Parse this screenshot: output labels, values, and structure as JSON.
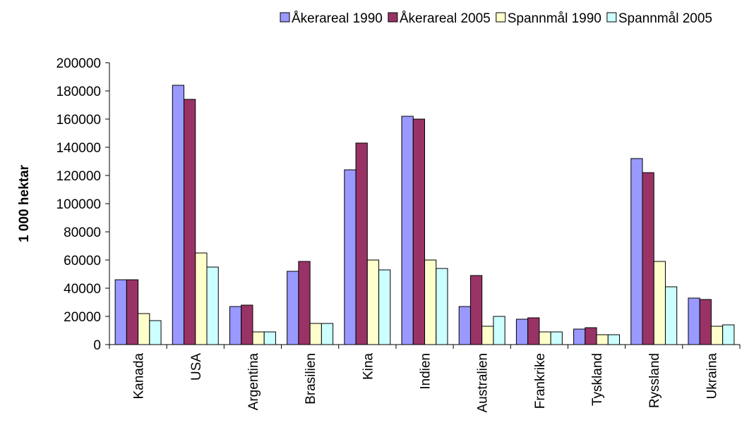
{
  "chart_data": {
    "type": "bar",
    "y_label": "1 000 hektar",
    "categories": [
      "Kanada",
      "USA",
      "Argentina",
      "Brasilien",
      "Kina",
      "Indien",
      "Australien",
      "Frankrike",
      "Tyskland",
      "Ryssland",
      "Ukraina"
    ],
    "series": [
      {
        "name": "Åkerareal 1990",
        "color": "#9999ff",
        "values": [
          46000,
          184000,
          27000,
          52000,
          124000,
          162000,
          27000,
          18000,
          11000,
          132000,
          33000
        ]
      },
      {
        "name": "Åkerareal 2005",
        "color": "#993366",
        "values": [
          46000,
          174000,
          28000,
          59000,
          143000,
          160000,
          49000,
          19000,
          12000,
          122000,
          32000
        ]
      },
      {
        "name": "Spannmål 1990",
        "color": "#ffffcc",
        "values": [
          22000,
          65000,
          9000,
          15000,
          60000,
          60000,
          13000,
          9000,
          7000,
          59000,
          13000
        ]
      },
      {
        "name": "Spannmål 2005",
        "color": "#ccffff",
        "values": [
          17000,
          55000,
          9000,
          15000,
          53000,
          54000,
          20000,
          9000,
          7000,
          41000,
          14000
        ]
      }
    ],
    "ylim": [
      0,
      200000
    ],
    "yticks": [
      0,
      20000,
      40000,
      60000,
      80000,
      100000,
      120000,
      140000,
      160000,
      180000,
      200000
    ],
    "legend": "top",
    "grid": false
  }
}
